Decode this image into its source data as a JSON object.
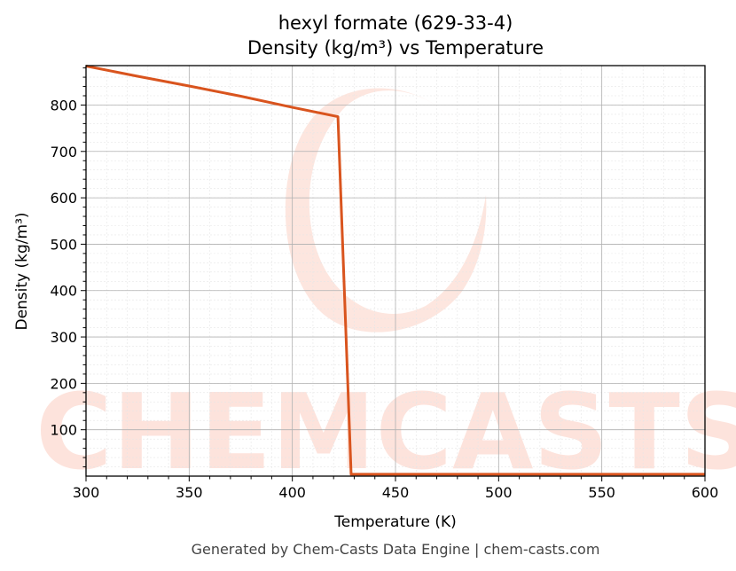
{
  "chart_data": {
    "type": "line",
    "title_line1": "hexyl formate (629-33-4)",
    "title_line2": "Density (kg/m³) vs Temperature",
    "xlabel": "Temperature (K)",
    "ylabel": "Density (kg/m³)",
    "xlim": [
      300,
      600
    ],
    "ylim": [
      0,
      885
    ],
    "x_ticks": [
      300,
      350,
      400,
      450,
      500,
      550,
      600
    ],
    "y_ticks": [
      100,
      200,
      300,
      400,
      500,
      600,
      700,
      800
    ],
    "grid": true,
    "line_color": "#d9541e",
    "series": [
      {
        "x": [
          300,
          325,
          350,
          375,
          400,
          422.1,
          428.5,
          450,
          500,
          550,
          600
        ],
        "y": [
          884,
          862,
          841,
          819,
          795,
          775,
          4,
          4,
          4,
          4,
          4
        ]
      }
    ]
  },
  "watermark": {
    "text": "CHEMCASTS",
    "color": "#fde3dc"
  },
  "footer": "Generated by Chem-Casts Data Engine | chem-casts.com"
}
